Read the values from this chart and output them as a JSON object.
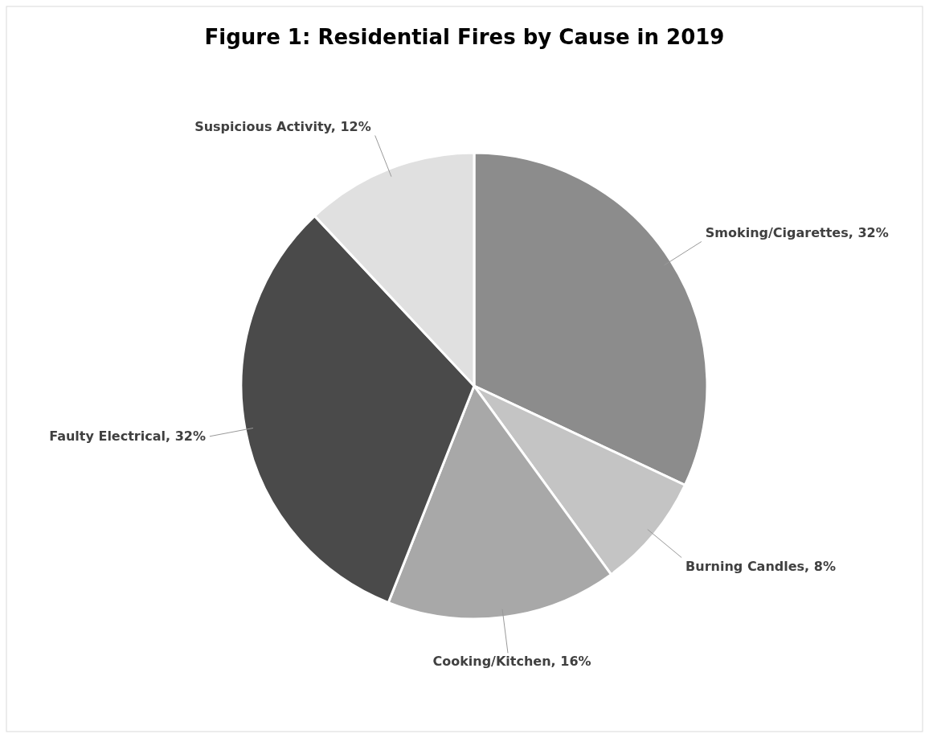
{
  "chart_data": {
    "type": "pie",
    "title": "Figure 1: Residential Fires by Cause in 2019",
    "categories": [
      "Smoking/Cigarettes",
      "Burning Candles",
      "Cooking/Kitchen",
      "Faulty Electrical",
      "Suspicious Activity"
    ],
    "values": [
      32,
      8,
      16,
      32,
      12
    ],
    "value_labels": [
      "32%",
      "8%",
      "16%",
      "32%",
      "12%"
    ],
    "colors": [
      "#8c8c8c",
      "#c4c4c4",
      "#a8a8a8",
      "#4a4a4a",
      "#e0e0e0"
    ],
    "legend": false
  }
}
